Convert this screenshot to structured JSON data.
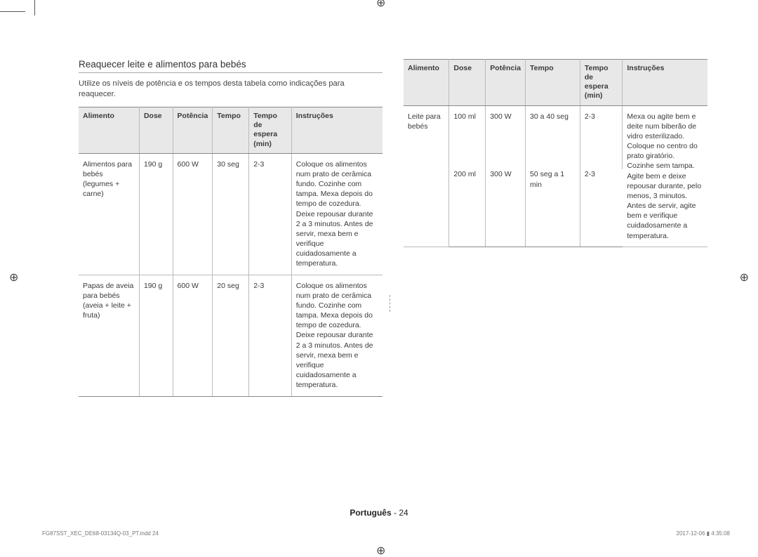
{
  "section": {
    "title": "Reaquecer leite e alimentos para bebés",
    "intro": "Utilize os níveis de potência e os tempos desta tabela como indicações para reaquecer."
  },
  "headers": {
    "alimento": "Alimento",
    "dose": "Dose",
    "potencia": "Potência",
    "tempo": "Tempo",
    "espera": "Tempo de espera (min)",
    "instrucoes": "Instruções"
  },
  "left_table": {
    "row1": {
      "alimento": "Alimentos para bebés (legumes + carne)",
      "dose": "190 g",
      "potencia": "600 W",
      "tempo": "30 seg",
      "espera": "2-3",
      "instrucoes": "Coloque os alimentos num prato de cerâmica fundo. Cozinhe com tampa. Mexa depois do tempo de cozedura. Deixe repousar durante 2 a 3 minutos. Antes de servir, mexa bem e verifique cuidadosamente a temperatura."
    },
    "row2": {
      "alimento": "Papas de aveia para bebés (aveia + leite + fruta)",
      "dose": "190 g",
      "potencia": "600 W",
      "tempo": "20 seg",
      "espera": "2-3",
      "instrucoes": "Coloque os alimentos num prato de cerâmica fundo. Cozinhe com tampa. Mexa depois do tempo de cozedura. Deixe repousar durante 2 a 3 minutos. Antes de servir, mexa bem e verifique cuidadosamente a temperatura."
    }
  },
  "right_table": {
    "row1": {
      "alimento": "Leite para bebés",
      "dose1": "100 ml",
      "potencia1": "300 W",
      "tempo1": "30 a 40 seg",
      "espera1": "2-3",
      "dose2": "200 ml",
      "potencia2": "300 W",
      "tempo2": "50 seg a 1 min",
      "espera2": "2-3",
      "instrucoes": "Mexa ou agite bem e deite num biberão de vidro esterilizado. Coloque no centro do prato giratório. Cozinhe sem tampa. Agite bem e deixe repousar durante, pelo menos, 3 minutos. Antes de servir, agite bem e verifique cuidadosamente a temperatura."
    }
  },
  "footer": {
    "language": "Português",
    "sep": " - ",
    "page": "24",
    "print_path": "FG87SST_XEC_DE68-03134Q-03_PT.indd   24",
    "print_date": "2017-12-06   ▮ 4:35:08"
  },
  "colwidths": {
    "left": [
      "20%",
      "11%",
      "13%",
      "12%",
      "14%",
      "30%"
    ],
    "right": [
      "15%",
      "12%",
      "13%",
      "18%",
      "14%",
      "28%"
    ]
  }
}
